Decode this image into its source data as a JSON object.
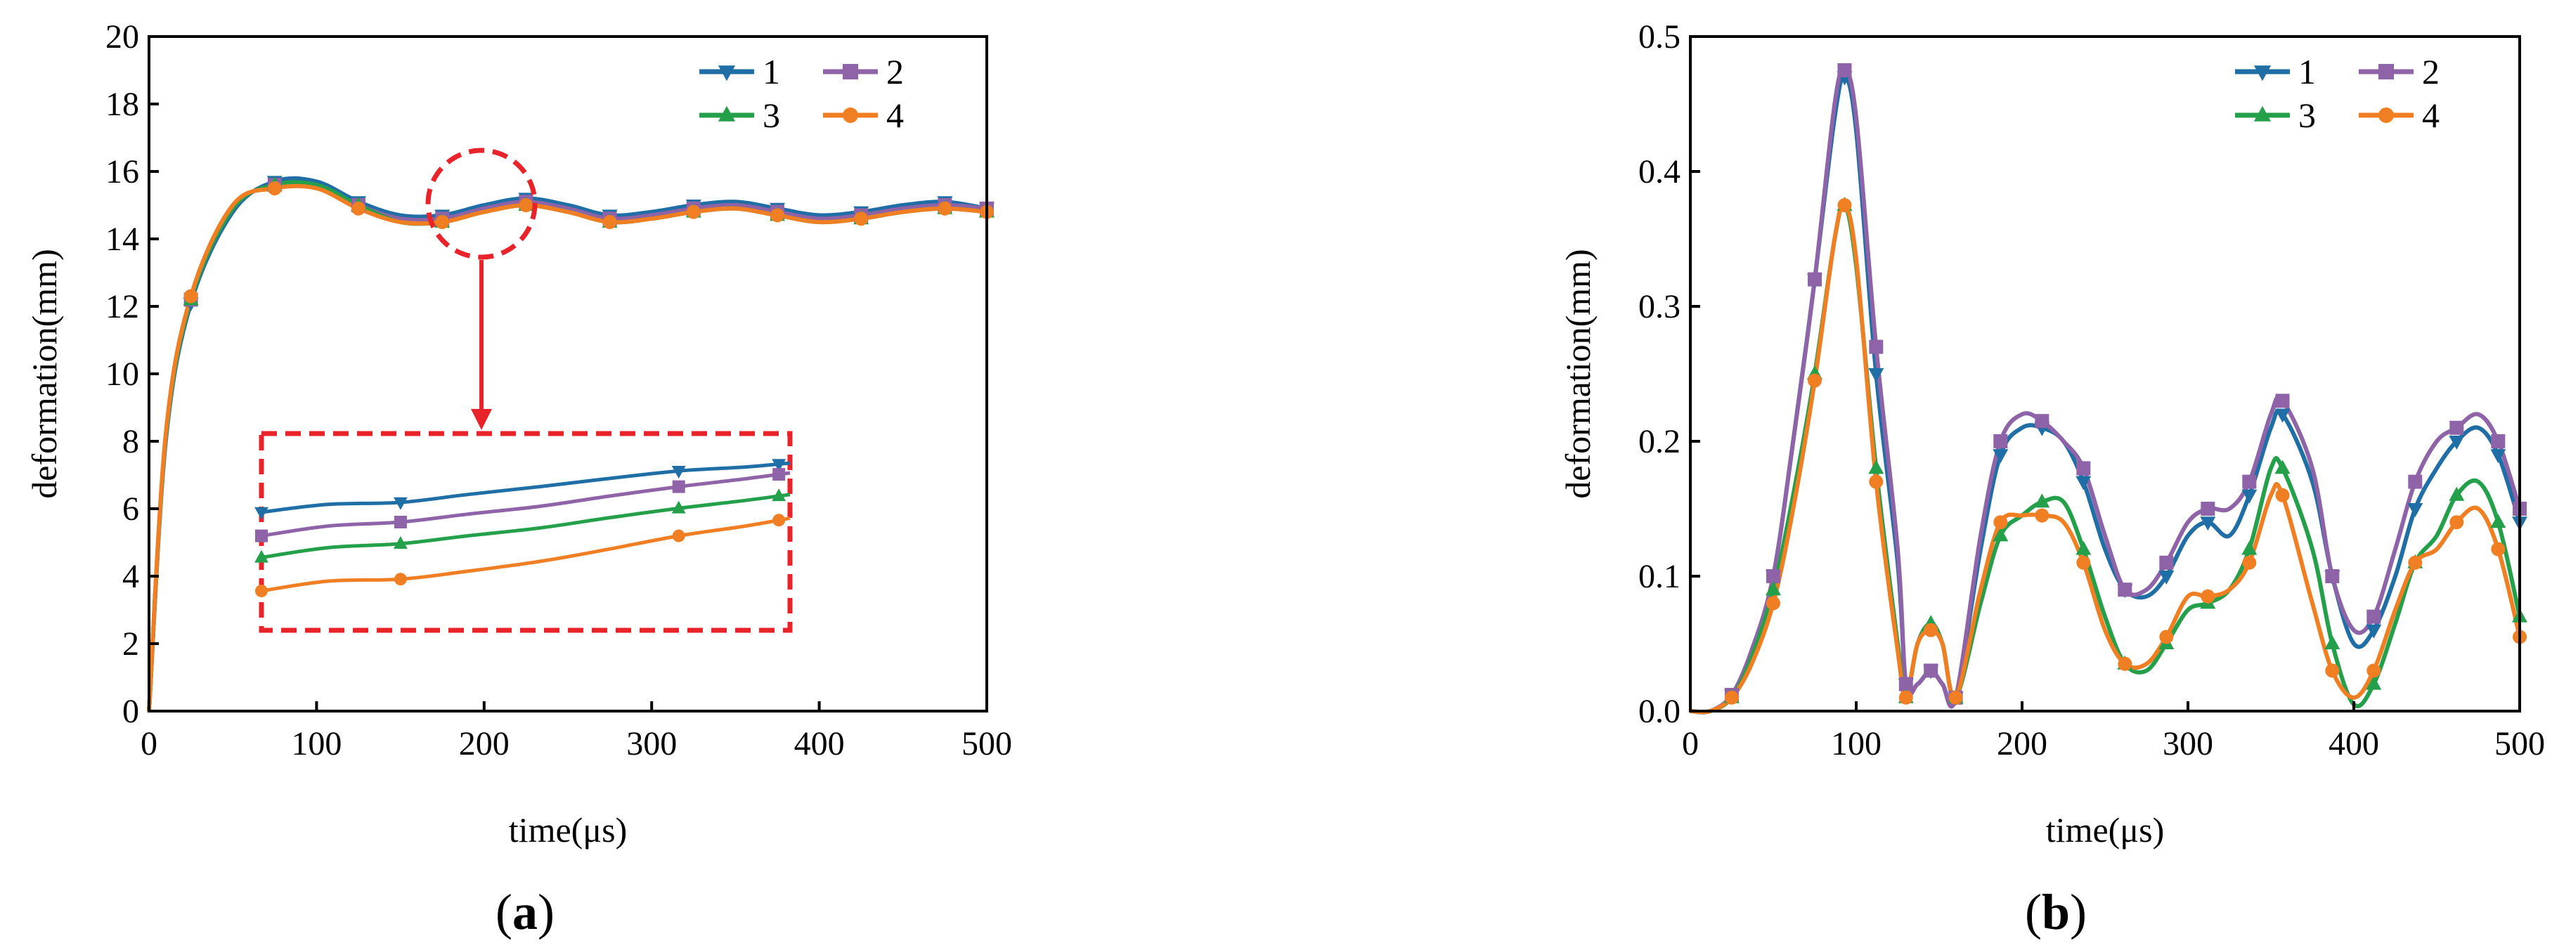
{
  "colors": {
    "series": [
      "#1f6fa6",
      "#8e63a8",
      "#25a04a",
      "#f07f24"
    ],
    "inset_frame": "#e8232a",
    "arrow": "#e8232a"
  },
  "panels": [
    {
      "label": "(a)",
      "label_open": "(",
      "label_letter": "a",
      "label_close": ")"
    },
    {
      "label": "(b)",
      "label_open": "(",
      "label_letter": "b",
      "label_close": ")"
    }
  ],
  "chart_data": [
    {
      "type": "line",
      "panel": "a",
      "xlabel": "time(μs)",
      "ylabel": "deformation(mm)",
      "xlim": [
        0,
        500
      ],
      "ylim": [
        0,
        20
      ],
      "xticks": [
        0,
        100,
        200,
        300,
        400,
        500
      ],
      "yticks": [
        0,
        2,
        4,
        6,
        8,
        10,
        12,
        14,
        16,
        18,
        20
      ],
      "legend": {
        "placement": "top-right",
        "columns": 2
      },
      "x": [
        0,
        10,
        25,
        50,
        75,
        100,
        125,
        150,
        175,
        200,
        225,
        250,
        275,
        300,
        325,
        350,
        375,
        400,
        425,
        450,
        475,
        500
      ],
      "series": [
        {
          "name": "1",
          "marker": "triangle-down",
          "values": [
            0,
            8.0,
            12.1,
            14.8,
            15.7,
            15.7,
            15.1,
            14.7,
            14.7,
            15.0,
            15.2,
            15.0,
            14.7,
            14.8,
            15.0,
            15.1,
            14.9,
            14.7,
            14.8,
            15.0,
            15.1,
            14.9
          ]
        },
        {
          "name": "2",
          "marker": "square",
          "values": [
            0,
            8.1,
            12.2,
            14.9,
            15.6,
            15.6,
            15.0,
            14.6,
            14.6,
            14.9,
            15.1,
            14.9,
            14.6,
            14.7,
            14.9,
            15.0,
            14.8,
            14.6,
            14.7,
            14.9,
            15.0,
            14.9
          ]
        },
        {
          "name": "3",
          "marker": "triangle-up",
          "values": [
            0,
            8.1,
            12.2,
            14.9,
            15.6,
            15.6,
            15.0,
            14.5,
            14.5,
            14.8,
            15.0,
            14.8,
            14.5,
            14.6,
            14.8,
            14.9,
            14.7,
            14.5,
            14.6,
            14.8,
            14.9,
            14.8
          ]
        },
        {
          "name": "4",
          "marker": "circle",
          "values": [
            0,
            8.2,
            12.3,
            15.0,
            15.5,
            15.5,
            14.9,
            14.5,
            14.5,
            14.8,
            15.0,
            14.8,
            14.5,
            14.6,
            14.8,
            14.9,
            14.7,
            14.5,
            14.6,
            14.8,
            14.9,
            14.8
          ]
        }
      ],
      "annotation": "dashed circle near x=200 zoomed into dashed inset box below",
      "inset": {
        "xlim": [
          150,
          245
        ],
        "ylim": [
          14.4,
          15.3
        ],
        "x": [
          150,
          162,
          175,
          187,
          200,
          212,
          225,
          237,
          245
        ],
        "marker_x": [
          150,
          175,
          225,
          243
        ],
        "series": [
          [
            14.95,
            14.99,
            15.0,
            15.04,
            15.08,
            15.12,
            15.16,
            15.18,
            15.2
          ],
          [
            14.83,
            14.88,
            14.9,
            14.94,
            14.98,
            15.03,
            15.08,
            15.12,
            15.15
          ],
          [
            14.72,
            14.77,
            14.79,
            14.83,
            14.87,
            14.92,
            14.97,
            15.01,
            15.04
          ],
          [
            14.55,
            14.6,
            14.61,
            14.65,
            14.7,
            14.76,
            14.83,
            14.88,
            14.92
          ]
        ]
      }
    },
    {
      "type": "line",
      "panel": "b",
      "xlabel": "time(μs)",
      "ylabel": "deformation(mm)",
      "xlim": [
        0,
        500
      ],
      "ylim": [
        0.0,
        0.5
      ],
      "xticks": [
        0,
        100,
        200,
        300,
        400,
        500
      ],
      "yticks": [
        "0.0",
        "0.1",
        "0.2",
        "0.3",
        "0.4",
        "0.5"
      ],
      "legend": {
        "placement": "top-right",
        "columns": 2
      },
      "series": [
        {
          "name": "1",
          "marker": "triangle-down",
          "x": [
            0,
            12,
            25,
            37,
            50,
            62,
            75,
            87,
            93,
            100,
            112,
            125,
            130,
            137,
            145,
            152,
            160,
            175,
            187,
            200,
            212,
            225,
            237,
            250,
            262,
            275,
            287,
            300,
            312,
            325,
            337,
            350,
            357,
            375,
            387,
            400,
            412,
            425,
            437,
            450,
            462,
            475,
            487,
            500
          ],
          "values": [
            0.0,
            0.0,
            0.012,
            0.045,
            0.1,
            0.2,
            0.32,
            0.44,
            0.47,
            0.43,
            0.25,
            0.11,
            0.02,
            0.02,
            0.03,
            0.02,
            0.01,
            0.12,
            0.19,
            0.21,
            0.21,
            0.2,
            0.17,
            0.12,
            0.09,
            0.085,
            0.1,
            0.13,
            0.14,
            0.13,
            0.16,
            0.21,
            0.22,
            0.17,
            0.1,
            0.05,
            0.06,
            0.1,
            0.15,
            0.18,
            0.2,
            0.21,
            0.19,
            0.14
          ]
        },
        {
          "name": "2",
          "marker": "square",
          "x": [
            0,
            12,
            25,
            37,
            50,
            62,
            75,
            87,
            93,
            100,
            112,
            125,
            130,
            137,
            145,
            152,
            160,
            175,
            187,
            200,
            212,
            225,
            237,
            250,
            262,
            275,
            287,
            300,
            312,
            325,
            337,
            350,
            357,
            375,
            387,
            400,
            412,
            425,
            437,
            450,
            462,
            475,
            487,
            500
          ],
          "values": [
            0.0,
            0.0,
            0.012,
            0.045,
            0.1,
            0.2,
            0.32,
            0.45,
            0.475,
            0.44,
            0.27,
            0.12,
            0.02,
            0.02,
            0.03,
            0.02,
            0.01,
            0.13,
            0.2,
            0.22,
            0.215,
            0.2,
            0.18,
            0.13,
            0.09,
            0.09,
            0.11,
            0.14,
            0.15,
            0.15,
            0.17,
            0.22,
            0.23,
            0.18,
            0.1,
            0.06,
            0.07,
            0.12,
            0.17,
            0.2,
            0.21,
            0.22,
            0.2,
            0.15
          ]
        },
        {
          "name": "3",
          "marker": "triangle-up",
          "x": [
            0,
            12,
            25,
            37,
            50,
            62,
            75,
            87,
            93,
            100,
            112,
            125,
            130,
            137,
            145,
            152,
            160,
            175,
            187,
            200,
            212,
            225,
            237,
            250,
            262,
            275,
            287,
            300,
            312,
            325,
            337,
            350,
            357,
            375,
            387,
            400,
            412,
            425,
            437,
            450,
            462,
            475,
            487,
            500
          ],
          "values": [
            0.0,
            0.0,
            0.01,
            0.04,
            0.09,
            0.16,
            0.25,
            0.35,
            0.375,
            0.33,
            0.18,
            0.05,
            0.01,
            0.05,
            0.065,
            0.05,
            0.01,
            0.08,
            0.13,
            0.145,
            0.155,
            0.155,
            0.12,
            0.07,
            0.035,
            0.03,
            0.05,
            0.075,
            0.08,
            0.09,
            0.12,
            0.18,
            0.18,
            0.12,
            0.05,
            0.005,
            0.02,
            0.065,
            0.11,
            0.13,
            0.16,
            0.17,
            0.14,
            0.07
          ]
        },
        {
          "name": "4",
          "marker": "circle",
          "x": [
            0,
            12,
            25,
            37,
            50,
            62,
            75,
            87,
            93,
            100,
            112,
            125,
            130,
            137,
            145,
            152,
            160,
            175,
            187,
            200,
            212,
            225,
            237,
            250,
            262,
            275,
            287,
            300,
            312,
            325,
            337,
            350,
            357,
            375,
            387,
            400,
            412,
            425,
            437,
            450,
            462,
            475,
            487,
            500
          ],
          "values": [
            0.0,
            0.0,
            0.01,
            0.035,
            0.08,
            0.15,
            0.245,
            0.35,
            0.375,
            0.335,
            0.17,
            0.045,
            0.01,
            0.05,
            0.06,
            0.05,
            0.01,
            0.09,
            0.14,
            0.145,
            0.145,
            0.14,
            0.11,
            0.06,
            0.035,
            0.035,
            0.055,
            0.085,
            0.085,
            0.09,
            0.11,
            0.16,
            0.16,
            0.08,
            0.03,
            0.01,
            0.03,
            0.075,
            0.11,
            0.12,
            0.14,
            0.15,
            0.12,
            0.055
          ]
        }
      ]
    }
  ]
}
